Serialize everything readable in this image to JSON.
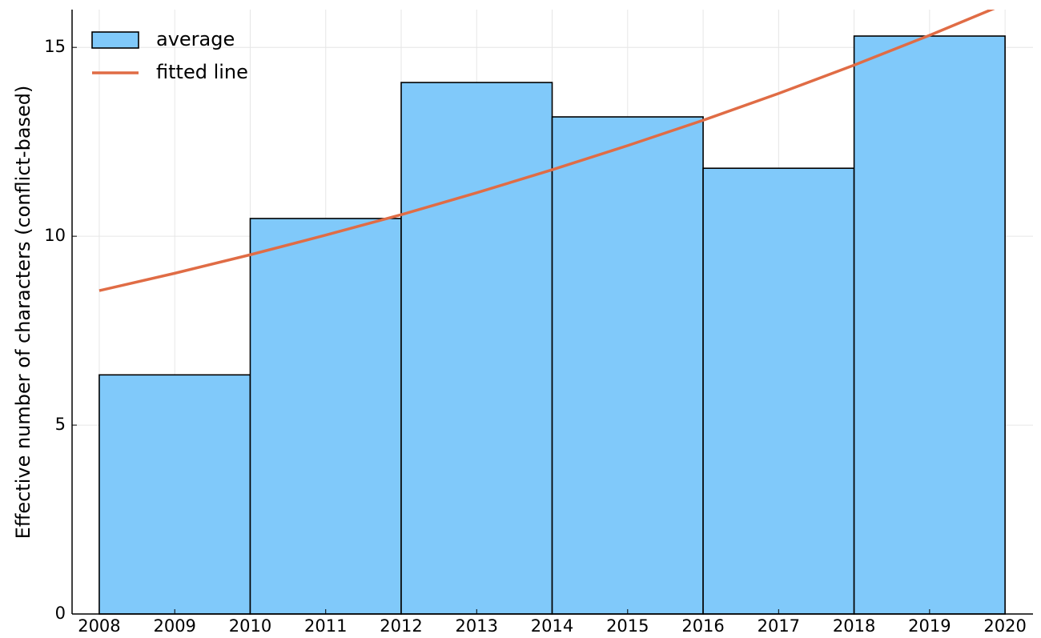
{
  "chart_data": {
    "type": "histogram",
    "ylabel": "Effective number of characters (conflict-based)",
    "bins": [
      2008,
      2010,
      2012,
      2014,
      2016,
      2018,
      2020
    ],
    "values": [
      6.33,
      10.47,
      14.07,
      13.16,
      11.8,
      15.3
    ],
    "name": "average",
    "color": "#80c9fa",
    "line": {
      "type": "line",
      "name": "fitted line",
      "color": "#e06c45",
      "x": [
        2008,
        2009,
        2010,
        2011,
        2012,
        2013,
        2014,
        2015,
        2016,
        2017,
        2018,
        2019,
        2020
      ],
      "values": [
        8.56,
        9.02,
        9.51,
        10.03,
        10.57,
        11.15,
        11.76,
        12.4,
        13.07,
        13.78,
        14.53,
        15.32,
        16.15
      ]
    },
    "xlim": [
      2007.64,
      2020.37
    ],
    "ylim": [
      0,
      16
    ],
    "xticks": [
      2008,
      2009,
      2010,
      2011,
      2012,
      2013,
      2014,
      2015,
      2016,
      2017,
      2018,
      2019,
      2020
    ],
    "yticks": [
      0,
      5,
      10,
      15
    ],
    "grid": true,
    "legend": "upper left"
  }
}
